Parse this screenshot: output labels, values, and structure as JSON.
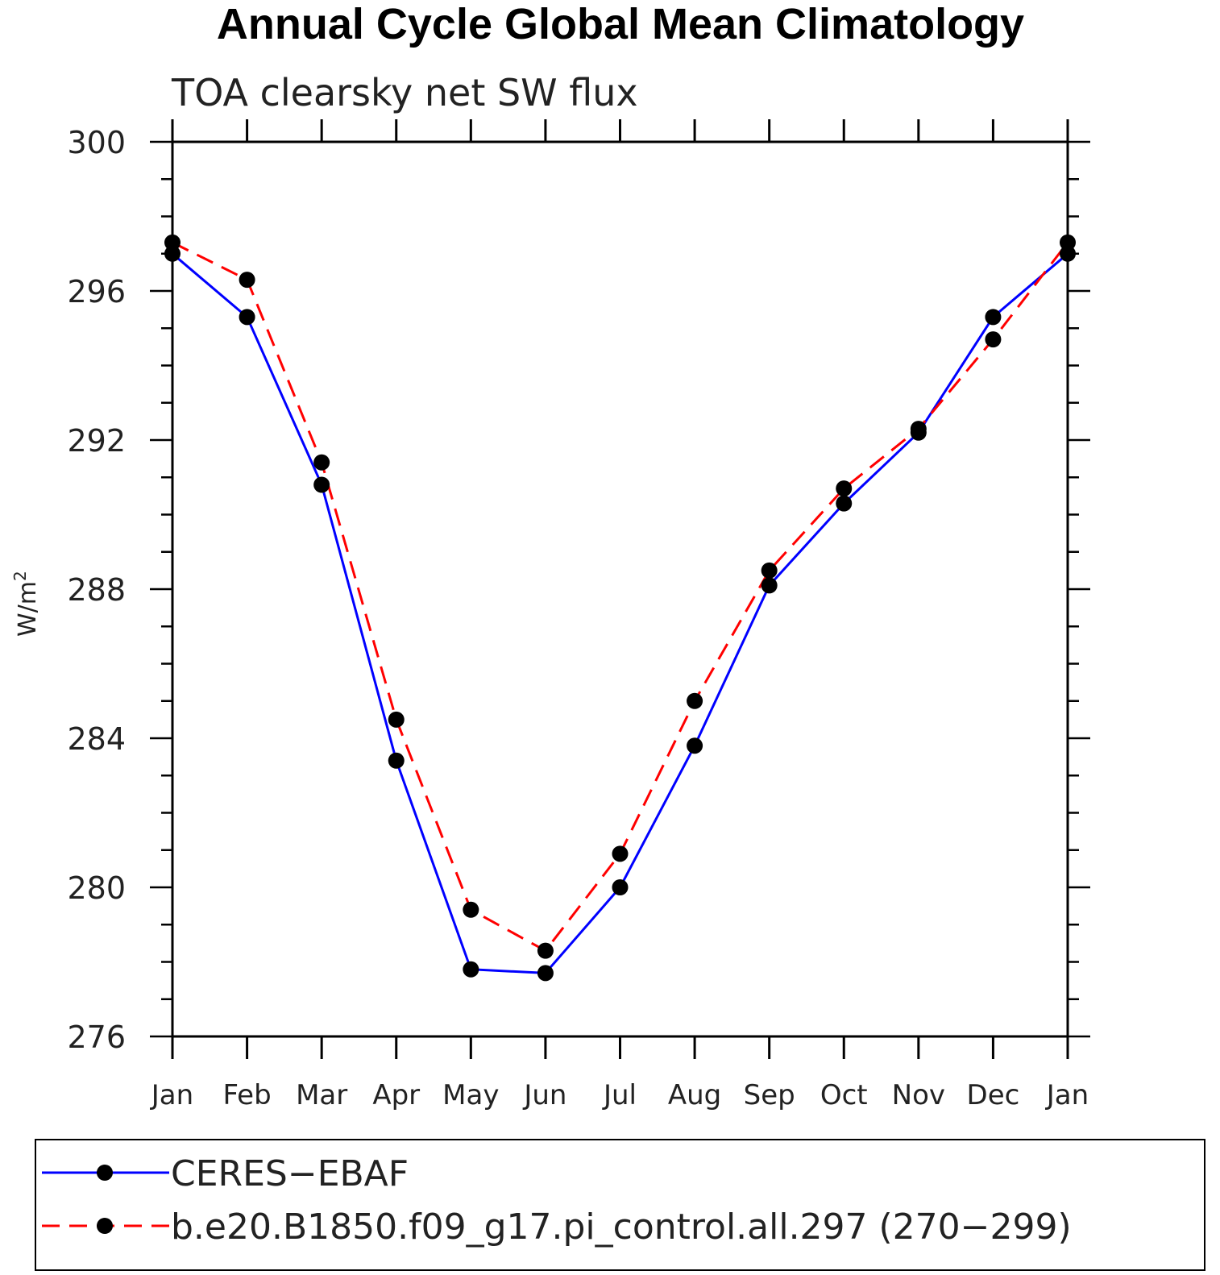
{
  "chart_data": {
    "type": "line",
    "title": "Annual Cycle Global Mean Climatology",
    "subtitle": "TOA clearsky net SW flux",
    "ylabel": "W/m",
    "ylabel_sup": "2",
    "categories": [
      "Jan",
      "Feb",
      "Mar",
      "Apr",
      "May",
      "Jun",
      "Jul",
      "Aug",
      "Sep",
      "Oct",
      "Nov",
      "Dec",
      "Jan"
    ],
    "ylim": [
      276,
      300
    ],
    "yticks": [
      "276",
      "280",
      "284",
      "288",
      "292",
      "296",
      "300"
    ],
    "grid": false,
    "legend_placement": "bottom",
    "series": [
      {
        "name": "CERES−EBAF",
        "color": "#0000ff",
        "dash": "solid",
        "marker": "filled-circle",
        "values": [
          297.0,
          295.3,
          290.8,
          283.4,
          277.8,
          277.7,
          280.0,
          283.8,
          288.1,
          290.3,
          292.2,
          295.3,
          297.0
        ]
      },
      {
        "name": "b.e20.B1850.f09_g17.pi_control.all.297 (270−299)",
        "color": "#ff0000",
        "dash": "dashed",
        "marker": "filled-circle",
        "values": [
          297.3,
          296.3,
          291.4,
          284.5,
          279.4,
          278.3,
          280.9,
          285.0,
          288.5,
          290.7,
          292.3,
          294.7,
          297.3
        ]
      }
    ]
  }
}
